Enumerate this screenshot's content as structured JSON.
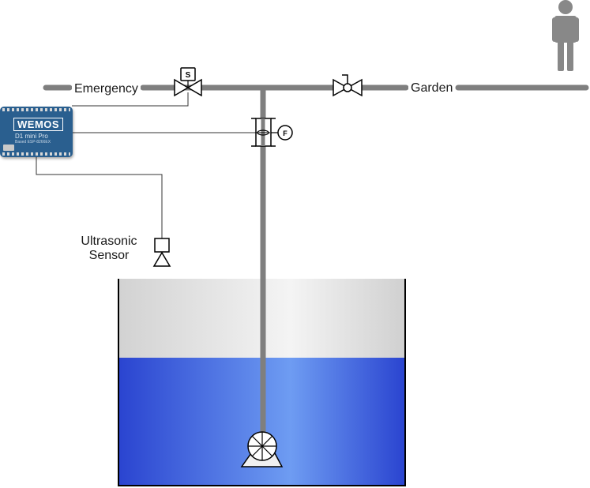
{
  "labels": {
    "emergency": "Emergency",
    "garden": "Garden",
    "ultrasonic_line1": "Ultrasonic",
    "ultrasonic_line2": "Sensor"
  },
  "solenoid_valve_symbol": "S",
  "flow_meter_symbol": "F",
  "microcontroller": {
    "brand": "WEMOS",
    "model": "D1 mini Pro",
    "sub": "Based ESP-8266EX"
  },
  "colors": {
    "pipe": "#7f7f7f",
    "wire": "#333333",
    "board": "#2a5f8f",
    "water_dark": "#2a44d0",
    "water_light": "#6e9cf2",
    "tank_air": "#dcdcdc",
    "person": "#888888"
  },
  "icons": [
    "solenoid-valve-icon",
    "manual-valve-icon",
    "flow-meter-icon",
    "pump-icon",
    "ultrasonic-sensor-icon",
    "person-icon",
    "microcontroller-icon"
  ]
}
